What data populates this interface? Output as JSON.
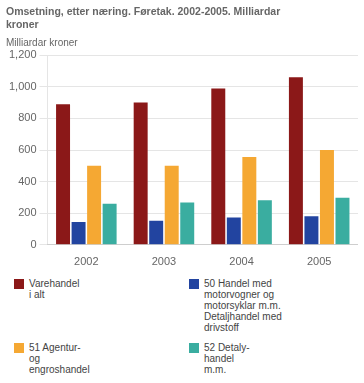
{
  "chart_data": {
    "type": "bar",
    "title": "Omsetning, etter næring. Føretak. 2002-2005. Milliardar\nkroner",
    "ylabel": "Milliardar kroner",
    "categories": [
      "2002",
      "2003",
      "2004",
      "2005"
    ],
    "series": [
      {
        "name": "Varehandel\ni alt",
        "color": "#8B1818",
        "values": [
          890,
          900,
          990,
          1060
        ]
      },
      {
        "name": "50 Handel med\nmotorvogner og\nmotorsyklar m.m.\nDetaljhandel med\ndrivstoff",
        "color": "#2244A0",
        "values": [
          145,
          152,
          172,
          180
        ]
      },
      {
        "name": "51 Agentur-\nog\nengroshandel",
        "color": "#F5A833",
        "values": [
          500,
          500,
          555,
          600
        ]
      },
      {
        "name": "52 Detaly-\nhandel\nm.m.",
        "color": "#3AADA0",
        "values": [
          260,
          268,
          282,
          298
        ]
      }
    ],
    "ylim": [
      0,
      1200
    ],
    "yticks": [
      0,
      200,
      400,
      600,
      800,
      1000,
      1200
    ],
    "grid": true,
    "legend": "bottom"
  }
}
